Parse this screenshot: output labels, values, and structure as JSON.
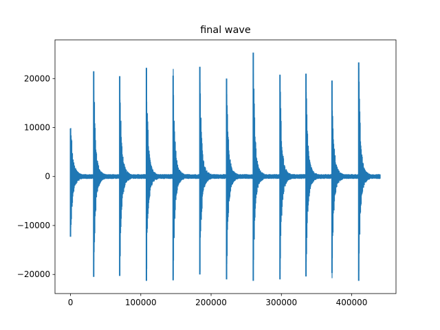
{
  "chart_data": {
    "type": "line",
    "title": "final wave",
    "xlabel": "",
    "ylabel": "",
    "xlim": [
      -22050,
      463050
    ],
    "ylim": [
      -23900,
      27900
    ],
    "grid": false,
    "line_color": "#1f77b4",
    "x_ticks": [
      {
        "value": 0,
        "label": "0"
      },
      {
        "value": 100000,
        "label": "100000"
      },
      {
        "value": 200000,
        "label": "200000"
      },
      {
        "value": 300000,
        "label": "300000"
      },
      {
        "value": 400000,
        "label": "400000"
      }
    ],
    "y_ticks": [
      {
        "value": -20000,
        "label": "−20000"
      },
      {
        "value": -10000,
        "label": "−10000"
      },
      {
        "value": 0,
        "label": "0"
      },
      {
        "value": 10000,
        "label": "10000"
      },
      {
        "value": 20000,
        "label": "20000"
      }
    ],
    "series": [
      {
        "peaks": [
          {
            "x": 0,
            "max": 9800,
            "min": -12300
          },
          {
            "x": 33000,
            "max": 21500,
            "min": -20500
          },
          {
            "x": 70000,
            "max": 20500,
            "min": -20300
          },
          {
            "x": 108000,
            "max": 22200,
            "min": -21300
          },
          {
            "x": 146000,
            "max": 20600,
            "min": -21200
          },
          {
            "x": 184000,
            "max": 22400,
            "min": -20000
          },
          {
            "x": 222000,
            "max": 20000,
            "min": -21000
          },
          {
            "x": 260000,
            "max": 25300,
            "min": -21300
          },
          {
            "x": 298000,
            "max": 20800,
            "min": -21000
          },
          {
            "x": 335000,
            "max": 21000,
            "min": -20400
          },
          {
            "x": 372000,
            "max": 19600,
            "min": -19700
          },
          {
            "x": 410000,
            "max": 23300,
            "min": -21300
          }
        ],
        "end_x": 441000
      }
    ]
  }
}
